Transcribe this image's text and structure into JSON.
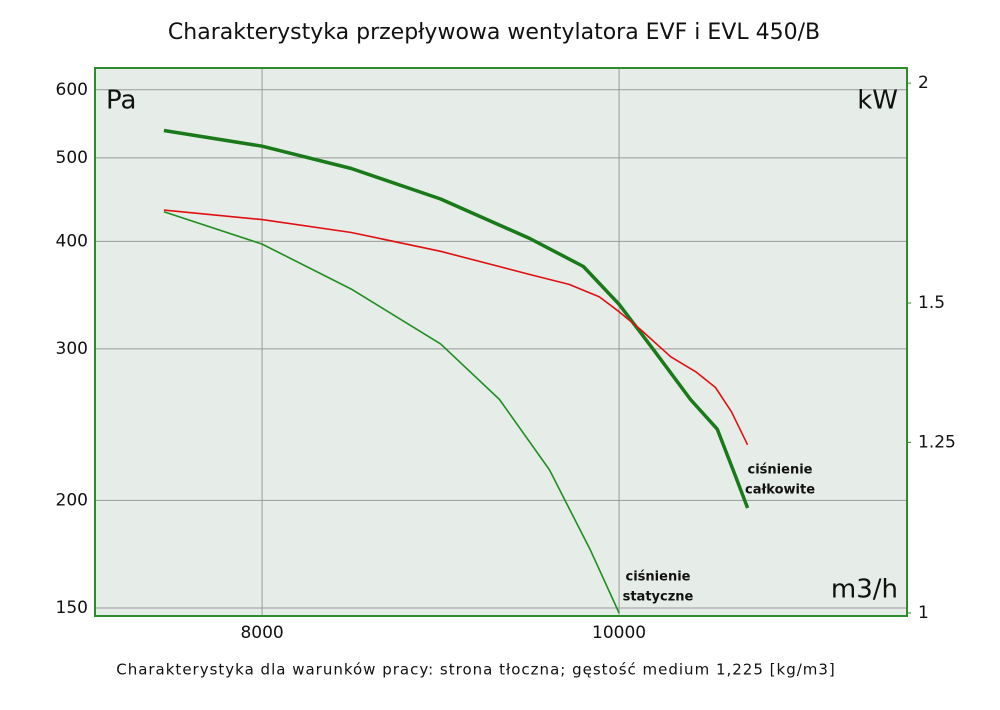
{
  "chart_data": {
    "type": "line",
    "title": "Charakterystyka przepływowa wentylatora EVF i EVL 450/B",
    "footnote": "Charakterystyka dla warunków pracy: strona tłoczna; gęstość medium 1,225 [kg/m3]",
    "x_label": "m3/h",
    "y_label": "Pa",
    "y2_label": "kW",
    "xlim": [
      7064,
      11613
    ],
    "xticks": [
      8000,
      10000
    ],
    "ylim": [
      146.8,
      636
    ],
    "yticks": [
      150,
      200,
      300,
      400,
      500,
      600
    ],
    "y_scale": "log",
    "y2lim": [
      0.996,
      2.04
    ],
    "y2ticks": [
      1,
      1.25,
      1.5,
      2
    ],
    "y2_scale": "log",
    "grid": true,
    "background": "#e6ece8",
    "frame_color": "#2e8b2e",
    "series": [
      {
        "color": "#1a7a1a",
        "width": 3.5,
        "x": [
          7450,
          8000,
          8500,
          9000,
          9500,
          9800,
          10000,
          10200,
          10400,
          10550,
          10650,
          10720
        ],
        "values": [
          538,
          516,
          486,
          448,
          403,
          374,
          338,
          298,
          262,
          242,
          214,
          196
        ]
      },
      {
        "color": "#1f8f1f",
        "width": 1.6,
        "x": [
          7450,
          8000,
          8500,
          9000,
          9330,
          9610,
          9840,
          10000
        ],
        "values": [
          433,
          397,
          352,
          304,
          262,
          217,
          175,
          148
        ]
      },
      {
        "color": "#e01010",
        "width": 1.6,
        "axis": "y2",
        "x": [
          7450,
          8000,
          8500,
          9000,
          9500,
          9720,
          9890,
          10000,
          10120,
          10290,
          10430,
          10540,
          10630,
          10720
        ],
        "values": [
          1.694,
          1.673,
          1.645,
          1.605,
          1.557,
          1.537,
          1.512,
          1.483,
          1.449,
          1.398,
          1.371,
          1.343,
          1.301,
          1.246
        ]
      }
    ],
    "annotations": [
      [
        "ciśnienie",
        "całkowite"
      ],
      [
        "ciśnienie",
        "statyczne"
      ]
    ]
  }
}
